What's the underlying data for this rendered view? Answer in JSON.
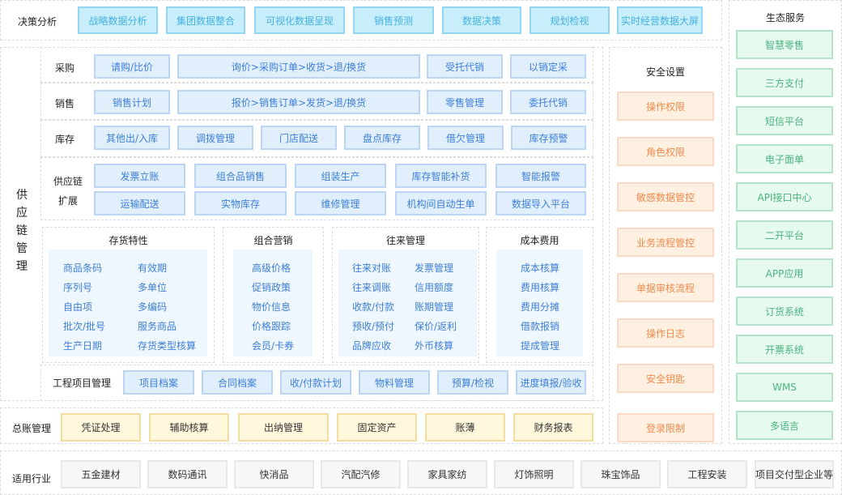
{
  "decision": {
    "label": "决策分析",
    "items": [
      "战略数据分析",
      "集团数据整合",
      "可视化数据呈现",
      "销售预测",
      "数据决策",
      "规划检视",
      "实时经营数据大屏"
    ]
  },
  "supply_chain": {
    "label": "供应链管理",
    "purchase": {
      "label": "采购",
      "items": [
        "请购/比价",
        "询价>采购订单>收货>退/换货",
        "受托代销",
        "以销定采"
      ]
    },
    "sales": {
      "label": "销售",
      "items": [
        "销售计划",
        "报价>销售订单>发货>退/换货",
        "零售管理",
        "委托代销"
      ]
    },
    "inventory": {
      "label": "库存",
      "items": [
        "其他出/入库",
        "调拨管理",
        "门店配送",
        "盘点库存",
        "借欠管理",
        "库存预警"
      ]
    },
    "extension": {
      "label_line1": "供应链",
      "label_line2": "扩展",
      "items": [
        "发票立账",
        "组合品销售",
        "组装生产",
        "库存智能补货",
        "智能报警",
        "运输配送",
        "实物库存",
        "维修管理",
        "机构间自动生单",
        "数据导入平台"
      ]
    },
    "sections": [
      {
        "title": "存货特性",
        "items": [
          "商品条码",
          "有效期",
          "序列号",
          "多单位",
          "自由项",
          "多编码",
          "批次/批号",
          "服务商品",
          "生产日期",
          "存货类型核算"
        ]
      },
      {
        "title": "组合营销",
        "items": [
          "高级价格",
          "促销政策",
          "物价信息",
          "价格跟踪",
          "会员/卡券"
        ]
      },
      {
        "title": "往来管理",
        "items": [
          "往来对账",
          "发票管理",
          "往来调账",
          "信用额度",
          "收款/付款",
          "账期管理",
          "预收/预付",
          "保价/返利",
          "品牌应收",
          "外币核算"
        ]
      },
      {
        "title": "成本费用",
        "items": [
          "成本核算",
          "费用核算",
          "费用分摊",
          "借款报销",
          "提成管理"
        ]
      }
    ],
    "project": {
      "label": "工程项目管理",
      "items": [
        "项目档案",
        "合同档案",
        "收/付款计划",
        "物料管理",
        "预算/检视",
        "进度填报/验收"
      ]
    }
  },
  "ledger": {
    "label": "总账管理",
    "items": [
      "凭证处理",
      "辅助核算",
      "出纳管理",
      "固定资产",
      "账薄",
      "财务报表"
    ]
  },
  "industry": {
    "label": "适用行业",
    "items": [
      "五金建材",
      "数码通讯",
      "快消品",
      "汽配汽修",
      "家具家纺",
      "灯饰照明",
      "珠宝饰品",
      "工程安装",
      "项目交付型企业等"
    ]
  },
  "security": {
    "title": "安全设置",
    "items": [
      "操作权限",
      "角色权限",
      "敏感数据管控",
      "业务流程管控",
      "单据审核流程",
      "操作日志",
      "安全钥匙",
      "登录限制"
    ]
  },
  "ecosystem": {
    "title": "生态服务",
    "items": [
      "智慧零售",
      "三方支付",
      "短信平台",
      "电子面单",
      "API接口中心",
      "二开平台",
      "APP应用",
      "订货系统",
      "开票系统",
      "WMS",
      "多语言"
    ]
  },
  "colors": {
    "decision": "#c8eefc",
    "module": "#e1effd",
    "security": "#fff0e2",
    "ecosystem": "#e6faef",
    "ledger": "#fff8dc",
    "industry": "#f7f7f7"
  }
}
